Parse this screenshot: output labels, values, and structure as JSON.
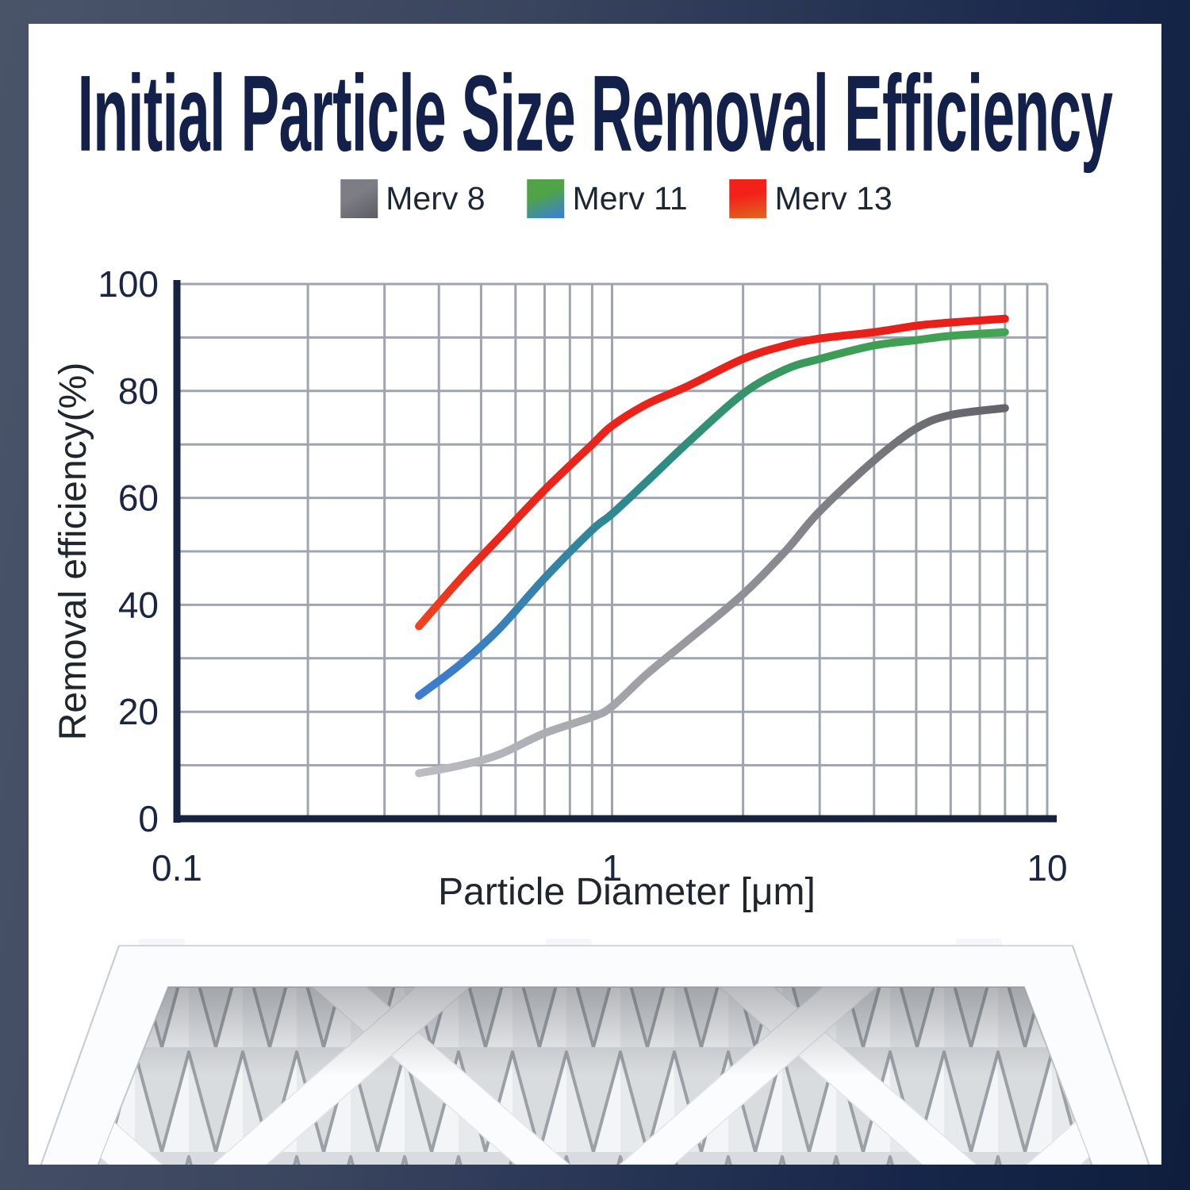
{
  "page": {
    "title": "Initial Particle Size Removal Efficiency",
    "title_color": "#13204a",
    "card_color": "#ffffff",
    "background_gradient": [
      "#4a5469",
      "#0e1e3c"
    ]
  },
  "legend": {
    "items": [
      {
        "label": "Merv 8",
        "angle": 150,
        "swatch_colors": [
          "#7d7d86",
          "#5c5c64"
        ]
      },
      {
        "label": "Merv 11",
        "angle": 160,
        "swatch_colors": [
          "#50a347",
          "#3a7de0"
        ]
      },
      {
        "label": "Merv 13",
        "angle": 170,
        "swatch_colors": [
          "#f2211a",
          "#e0661f"
        ]
      }
    ]
  },
  "chart_data": {
    "type": "line",
    "title": "Initial Particle Size Removal Efficiency",
    "xlabel": "Particle Diameter [μm]",
    "ylabel": "Removal efficiency(%)",
    "x_scale": "log",
    "xlim": [
      0.1,
      10
    ],
    "ylim": [
      0,
      100
    ],
    "x_ticks": [
      "0.1",
      "1",
      "10"
    ],
    "y_ticks": [
      0,
      20,
      40,
      60,
      80,
      100
    ],
    "grid": true,
    "x": [
      0.36,
      0.45,
      0.55,
      0.7,
      0.9,
      1.0,
      1.2,
      1.5,
      2.0,
      2.5,
      3.0,
      4.0,
      5.0,
      6.0,
      8.0
    ],
    "series": [
      {
        "name": "Merv 8",
        "y": [
          8.5,
          10,
          12,
          16,
          19,
          21,
          27,
          33.5,
          42,
          50,
          57.5,
          67,
          73,
          75.5,
          76.8
        ],
        "gradient": [
          [
            "0%",
            "#bcbdc2"
          ],
          [
            "55%",
            "#8e8f96"
          ],
          [
            "100%",
            "#636369"
          ]
        ]
      },
      {
        "name": "Merv 11",
        "y": [
          23,
          29,
          35.5,
          45,
          54,
          57,
          63,
          70.5,
          79.5,
          84,
          86,
          88.5,
          89.5,
          90.3,
          91
        ],
        "gradient": [
          [
            "0%",
            "#3e7bd2"
          ],
          [
            "45%",
            "#2d8a86"
          ],
          [
            "78%",
            "#3d9d53"
          ],
          [
            "100%",
            "#43a455"
          ]
        ]
      },
      {
        "name": "Merv 13",
        "y": [
          36,
          45,
          52.5,
          61.5,
          70,
          73.5,
          77.5,
          81,
          86,
          88.5,
          89.8,
          91,
          92.2,
          92.8,
          93.5
        ],
        "gradient": [
          [
            "0%",
            "#ef4320"
          ],
          [
            "15%",
            "#e9261c"
          ],
          [
            "100%",
            "#e71f1a"
          ]
        ]
      }
    ],
    "colors": {
      "grid": "#9fa4ae",
      "axis": "#16233e",
      "tick_label": "#1b2642",
      "axis_title": "#20262e"
    }
  }
}
